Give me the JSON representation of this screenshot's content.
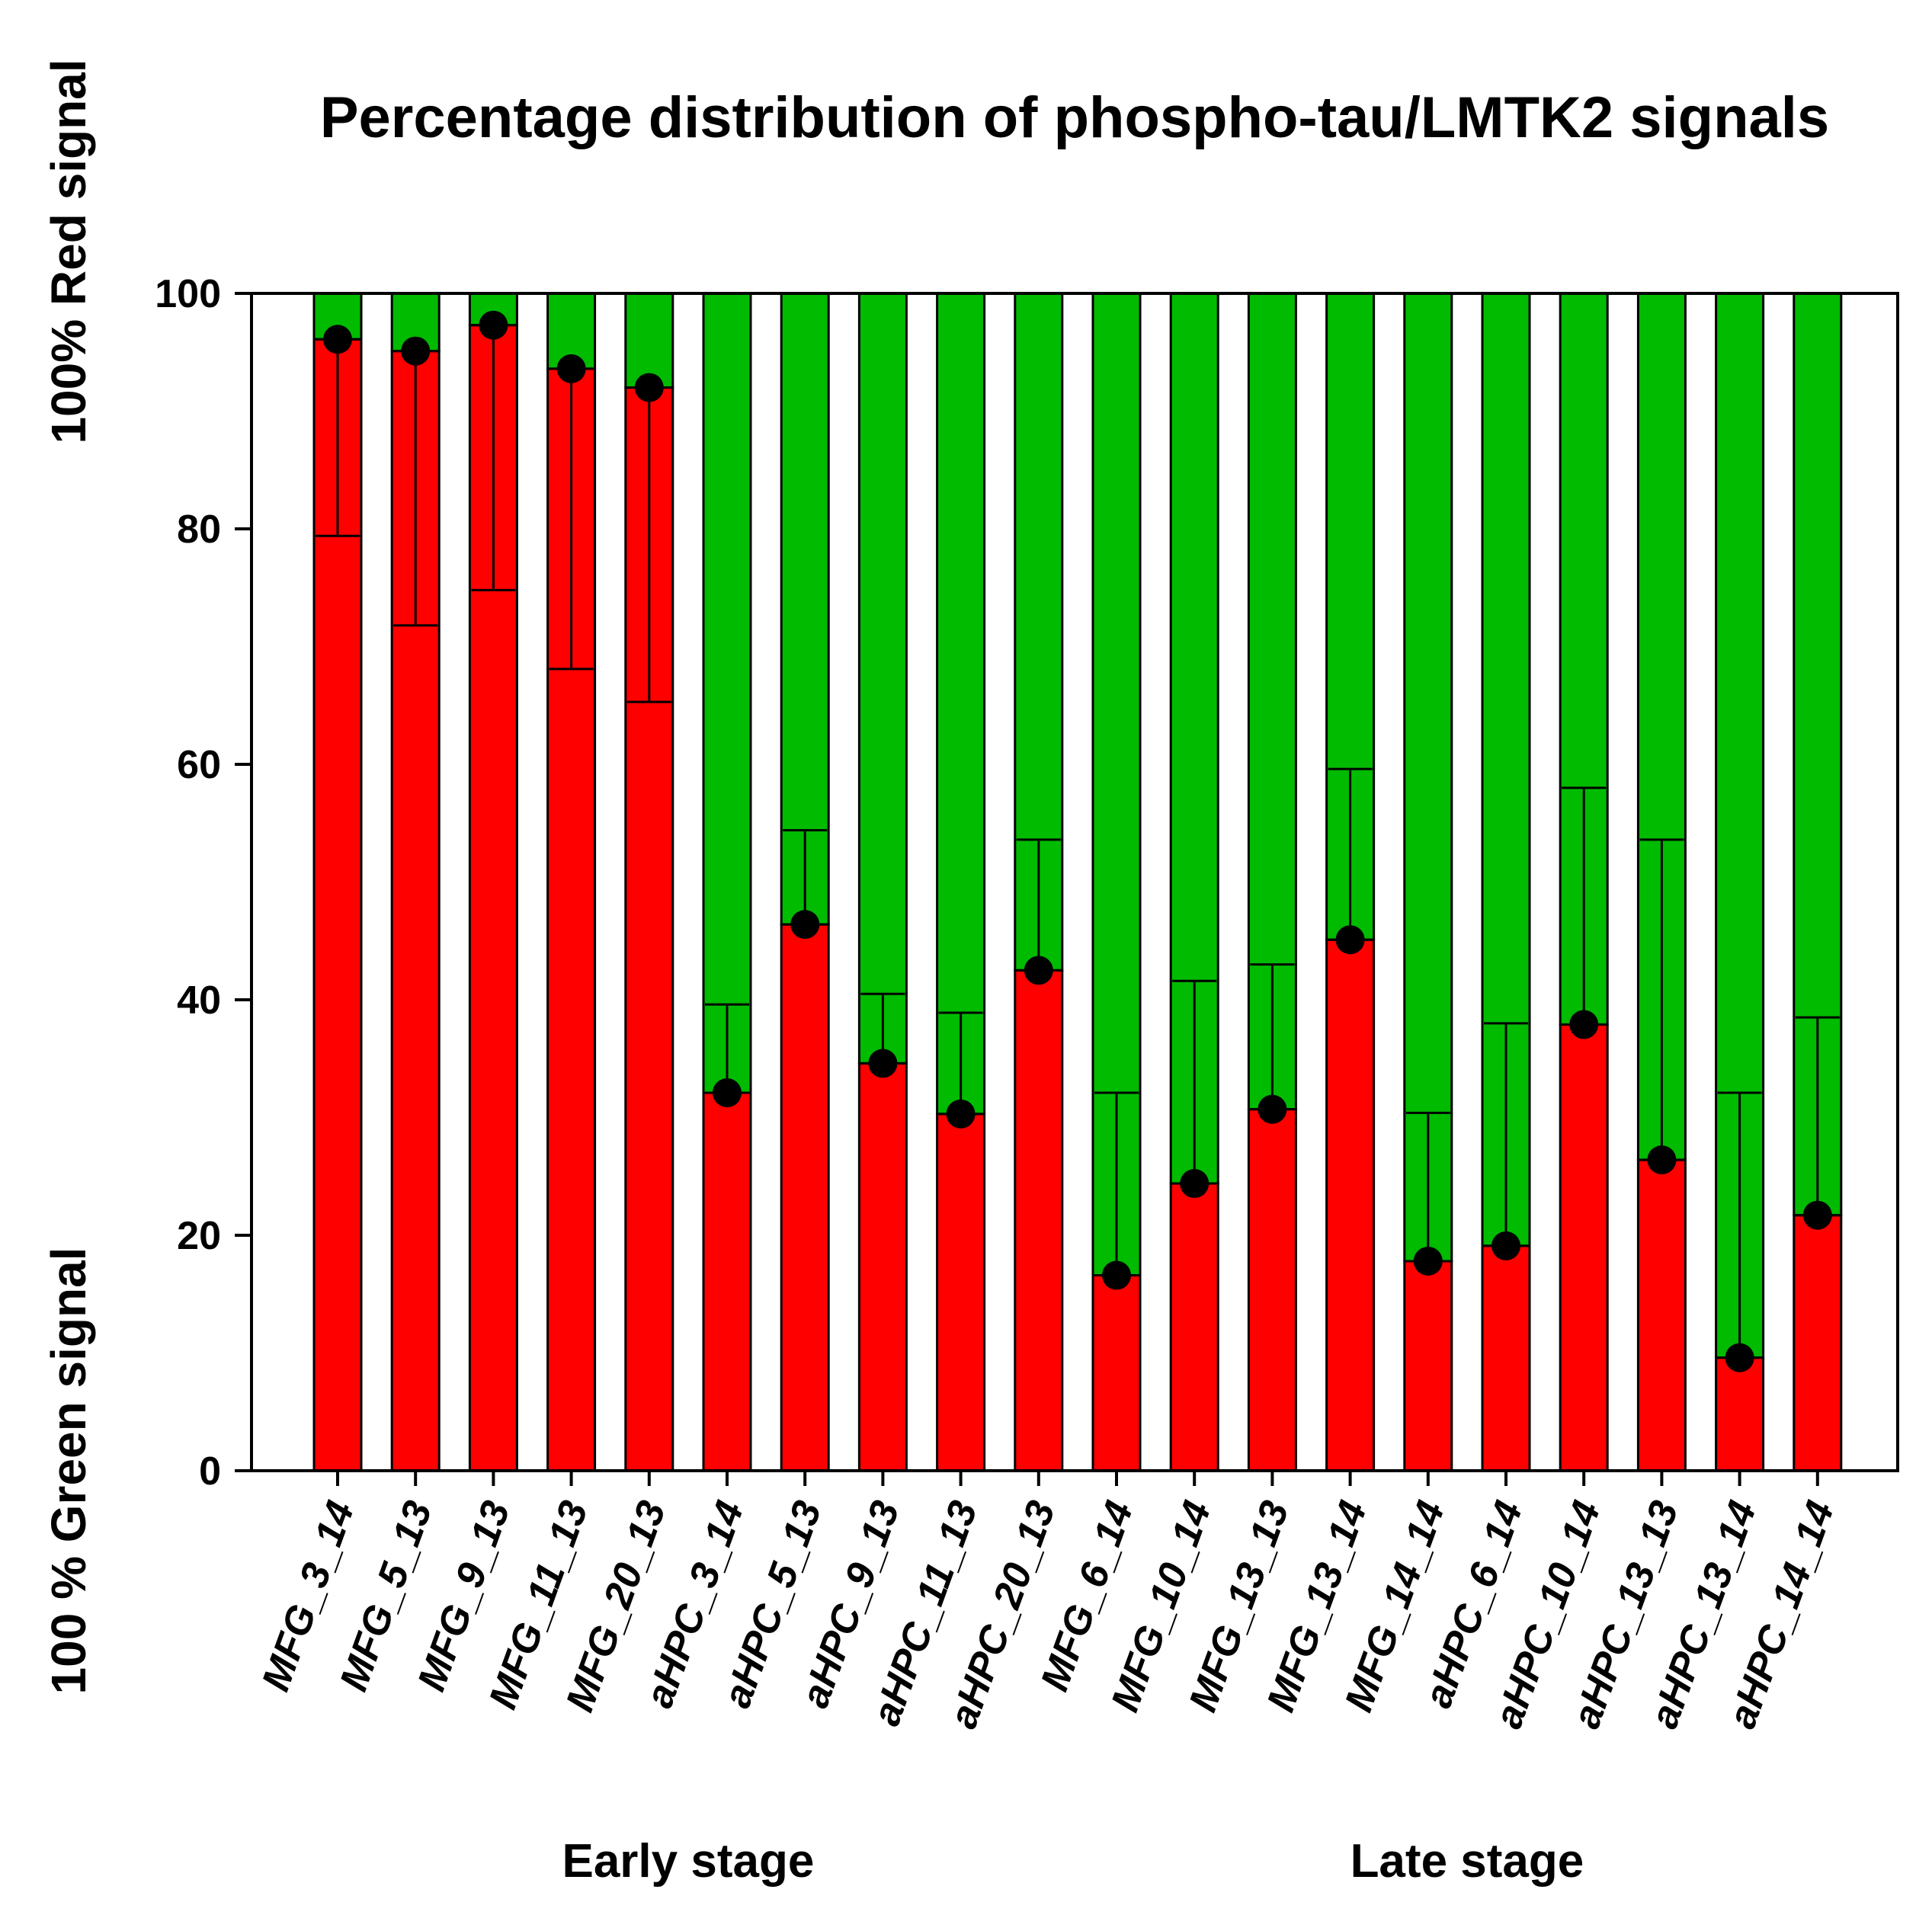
{
  "chart_data": {
    "type": "bar",
    "title": "Percentage distribution of phospho-tau/LMTK2 signals",
    "ylabel_top": "100% Red signal",
    "ylabel_bottom": "100 % Green signal",
    "ylim": [
      0,
      100
    ],
    "yticks": [
      "0",
      "20",
      "40",
      "60",
      "80",
      "100"
    ],
    "categories": [
      "MFG_3_14",
      "MFG_5_13",
      "MFG_9_13",
      "MFG_11_13",
      "MFG_20_13",
      "aHPC_3_14",
      "aHPC_5_13",
      "aHPC_9_13",
      "aHPC_11_13",
      "aHPC_20_13",
      "MFG_6_14",
      "MFG_10_14",
      "MFG_13_13",
      "MFG_13_14",
      "MFG_14_14",
      "aHPC_6_14",
      "aHPC_10_14",
      "aHPC_13_13",
      "aHPC_13_14",
      "aHPC_14_14"
    ],
    "series": [
      {
        "name": "Red signal",
        "color": "#ff0000",
        "values": [
          96.1,
          95.1,
          97.3,
          93.6,
          92.0,
          32.1,
          46.4,
          34.6,
          30.3,
          42.5,
          16.6,
          24.4,
          30.7,
          45.1,
          17.8,
          19.1,
          37.9,
          26.4,
          9.6,
          21.7
        ]
      },
      {
        "name": "Green signal",
        "color": "#00bb00",
        "values": [
          3.9,
          4.9,
          2.7,
          6.4,
          8.0,
          67.9,
          53.6,
          65.4,
          69.7,
          57.5,
          83.4,
          75.6,
          69.3,
          54.9,
          82.2,
          80.9,
          62.1,
          73.6,
          90.4,
          78.3
        ]
      }
    ],
    "error_low": [
      79.4,
      71.8,
      74.8,
      68.1,
      65.3,
      32.1,
      46.4,
      34.6,
      30.3,
      42.5,
      16.6,
      24.4,
      30.7,
      45.1,
      17.8,
      19.1,
      37.9,
      26.4,
      9.6,
      21.7
    ],
    "error_high": [
      96.1,
      95.1,
      97.3,
      93.6,
      92.0,
      39.6,
      54.4,
      40.5,
      38.9,
      53.6,
      32.1,
      41.6,
      43.0,
      59.6,
      30.4,
      38.0,
      58.0,
      53.6,
      32.1,
      38.5
    ],
    "groups": [
      {
        "label": "Early stage",
        "from": 0,
        "to": 9
      },
      {
        "label": "Late stage",
        "from": 10,
        "to": 19
      }
    ]
  }
}
